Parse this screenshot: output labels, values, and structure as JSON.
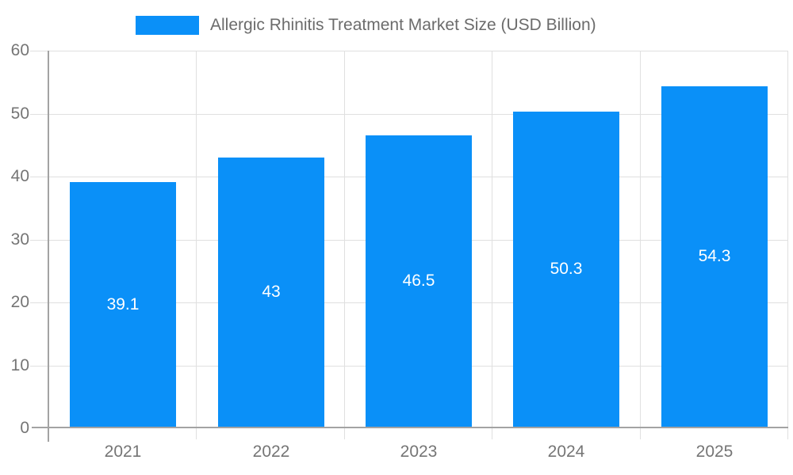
{
  "chart_data": {
    "type": "bar",
    "legend": "Allergic Rhinitis Treatment Market Size (USD Billion)",
    "legend_position": "top",
    "categories": [
      "2021",
      "2022",
      "2023",
      "2024",
      "2025"
    ],
    "values": [
      39.1,
      43,
      46.5,
      50.3,
      54.3
    ],
    "value_labels": [
      "39.1",
      "43",
      "46.5",
      "50.3",
      "54.3"
    ],
    "ylim": [
      0,
      60
    ],
    "yticks": [
      0,
      10,
      20,
      30,
      40,
      50,
      60
    ],
    "grid": true,
    "colors": {
      "bar": "#0a90f8",
      "grid": "#e0e0e0",
      "axis": "#a3a3a3",
      "tick_text": "#757575",
      "legend_text": "#6b6b6b",
      "value_text": "#ffffff",
      "background": "#ffffff"
    }
  }
}
